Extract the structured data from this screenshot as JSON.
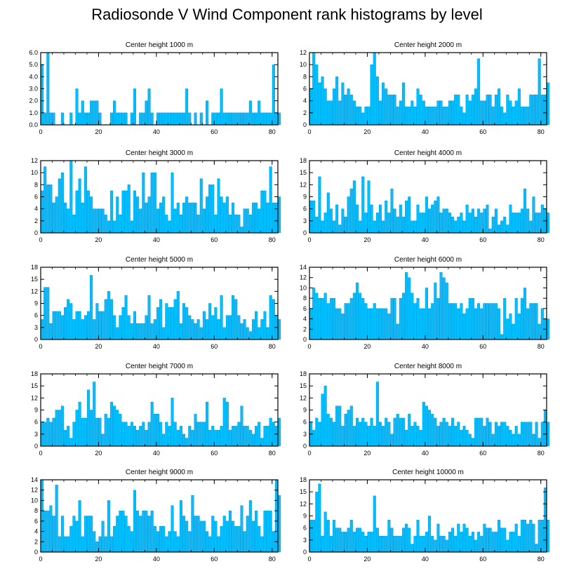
{
  "title": "Radiosonde V Wind Component rank histograms by level",
  "colors": {
    "bar": "#00BFFF",
    "bar_stroke": "#0088cc",
    "axis": "#000000"
  },
  "chart_data": [
    {
      "type": "bar",
      "title": "Center height 1000 m",
      "xlim": [
        0,
        82
      ],
      "ylim": [
        0,
        6
      ],
      "yticks": [
        0,
        1,
        2,
        3,
        4,
        5,
        6
      ],
      "ytick_labels": [
        "0.0",
        "1.0",
        "2.0",
        "3.0",
        "4.0",
        "5.0",
        "6.0"
      ],
      "xticks": [
        0,
        20,
        40,
        60,
        80
      ],
      "values": [
        5,
        1,
        6,
        1,
        1,
        0,
        0,
        1,
        0,
        0,
        1,
        0,
        3,
        1,
        2,
        1,
        1,
        2,
        2,
        2,
        1,
        0,
        0,
        0,
        1,
        2,
        1,
        1,
        1,
        1,
        0,
        1,
        3,
        0,
        1,
        1,
        2,
        3,
        1,
        0,
        1,
        1,
        1,
        1,
        1,
        1,
        1,
        1,
        1,
        1,
        3,
        1,
        0,
        1,
        0,
        1,
        0,
        2,
        0,
        1,
        1,
        1,
        3,
        1,
        1,
        1,
        1,
        1,
        1,
        1,
        1,
        1,
        2,
        1,
        1,
        2,
        1,
        1,
        1,
        1,
        5,
        1,
        1
      ]
    },
    {
      "type": "bar",
      "title": "Center height 2000 m",
      "xlim": [
        0,
        82
      ],
      "ylim": [
        0,
        12
      ],
      "yticks": [
        0,
        2,
        4,
        6,
        8,
        10,
        12
      ],
      "xticks": [
        0,
        20,
        40,
        60,
        80
      ],
      "values": [
        6,
        12,
        10,
        7,
        8,
        6,
        4,
        4,
        6,
        8,
        4,
        7,
        5,
        6,
        5,
        4,
        3,
        3,
        2,
        3,
        3,
        10,
        12,
        8,
        4,
        7,
        6,
        5,
        5,
        5,
        3,
        4,
        7,
        3,
        3,
        4,
        3,
        6,
        5,
        4,
        3,
        3,
        3,
        3,
        4,
        4,
        3,
        3,
        4,
        4,
        5,
        5,
        3,
        2,
        5,
        4,
        5,
        6,
        11,
        4,
        4,
        5,
        5,
        3,
        5,
        6,
        3,
        2,
        5,
        4,
        3,
        4,
        6,
        3,
        3,
        3,
        5,
        5,
        5,
        11,
        5,
        5,
        7
      ]
    },
    {
      "type": "bar",
      "title": "Center height 3000 m",
      "xlim": [
        0,
        82
      ],
      "ylim": [
        0,
        12
      ],
      "yticks": [
        0,
        2,
        4,
        6,
        8,
        10,
        12
      ],
      "xticks": [
        0,
        20,
        40,
        60,
        80
      ],
      "values": [
        7,
        11,
        8,
        8,
        5,
        6,
        9,
        10,
        5,
        4,
        12,
        3,
        7,
        9,
        5,
        11,
        7,
        6,
        4,
        4,
        4,
        4,
        3,
        2,
        7,
        2,
        6,
        3,
        7,
        7,
        8,
        2,
        7,
        6,
        4,
        10,
        5,
        6,
        10,
        10,
        4,
        5,
        6,
        3,
        2,
        10,
        4,
        5,
        3,
        5,
        6,
        5,
        5,
        5,
        3,
        9,
        4,
        6,
        8,
        8,
        3,
        9,
        6,
        5,
        6,
        3,
        5,
        3,
        3,
        1,
        4,
        4,
        3,
        5,
        5,
        4,
        7,
        7,
        5,
        11,
        5,
        5,
        6
      ]
    },
    {
      "type": "bar",
      "title": "Center height 4000 m",
      "xlim": [
        0,
        82
      ],
      "ylim": [
        0,
        18
      ],
      "yticks": [
        0,
        3,
        6,
        9,
        12,
        15,
        18
      ],
      "xticks": [
        0,
        20,
        40,
        60,
        80
      ],
      "values": [
        8,
        8,
        4,
        14,
        3,
        5,
        10,
        6,
        3,
        7,
        2,
        6,
        4,
        9,
        11,
        13,
        7,
        3,
        14,
        5,
        13,
        7,
        3,
        5,
        7,
        3,
        8,
        5,
        11,
        6,
        4,
        7,
        4,
        8,
        9,
        3,
        3,
        7,
        5,
        5,
        9,
        6,
        7,
        8,
        9,
        5,
        6,
        6,
        5,
        4,
        3,
        4,
        5,
        3,
        7,
        5,
        6,
        4,
        6,
        5,
        6,
        7,
        1,
        4,
        6,
        2,
        3,
        4,
        2,
        7,
        5,
        5,
        5,
        6,
        11,
        6,
        3,
        9,
        5,
        5,
        7,
        6,
        5
      ]
    },
    {
      "type": "bar",
      "title": "Center height 5000 m",
      "xlim": [
        0,
        82
      ],
      "ylim": [
        0,
        18
      ],
      "yticks": [
        0,
        3,
        6,
        9,
        12,
        15,
        18
      ],
      "xticks": [
        0,
        20,
        40,
        60,
        80
      ],
      "values": [
        5,
        13,
        13,
        4,
        7,
        7,
        7,
        6,
        8,
        10,
        9,
        5,
        7,
        7,
        5,
        6,
        7,
        16,
        5,
        9,
        7,
        7,
        10,
        12,
        10,
        6,
        3,
        6,
        8,
        11,
        6,
        4,
        7,
        4,
        4,
        4,
        6,
        11,
        4,
        5,
        8,
        10,
        3,
        9,
        8,
        8,
        10,
        12,
        4,
        9,
        8,
        6,
        5,
        4,
        5,
        3,
        7,
        5,
        9,
        6,
        8,
        5,
        11,
        3,
        6,
        6,
        11,
        10,
        6,
        4,
        5,
        3,
        2,
        5,
        7,
        3,
        5,
        7,
        3,
        11,
        10,
        6,
        5
      ]
    },
    {
      "type": "bar",
      "title": "Center height 6000 m",
      "xlim": [
        0,
        82
      ],
      "ylim": [
        0,
        14
      ],
      "yticks": [
        0,
        2,
        4,
        6,
        8,
        10,
        12,
        14
      ],
      "xticks": [
        0,
        20,
        40,
        60,
        80
      ],
      "values": [
        6,
        10,
        9,
        8,
        8,
        9,
        7,
        8,
        8,
        6,
        6,
        5,
        7,
        7,
        8,
        9,
        11,
        9,
        8,
        7,
        6,
        6,
        7,
        6,
        6,
        6,
        6,
        5,
        8,
        8,
        3,
        8,
        9,
        13,
        12,
        9,
        7,
        8,
        6,
        6,
        10,
        6,
        7,
        11,
        8,
        13,
        12,
        11,
        7,
        7,
        7,
        6,
        7,
        5,
        6,
        8,
        8,
        6,
        7,
        6,
        7,
        7,
        7,
        7,
        7,
        6,
        1,
        8,
        4,
        5,
        3,
        8,
        5,
        8,
        10,
        6,
        7,
        7,
        7,
        3,
        6,
        4,
        4
      ]
    },
    {
      "type": "bar",
      "title": "Center height 7000 m",
      "xlim": [
        0,
        82
      ],
      "ylim": [
        0,
        18
      ],
      "yticks": [
        0,
        3,
        6,
        9,
        12,
        15,
        18
      ],
      "xticks": [
        0,
        20,
        40,
        60,
        80
      ],
      "values": [
        6,
        6,
        7,
        6,
        7,
        9,
        9,
        10,
        4,
        5,
        2,
        6,
        9,
        11,
        7,
        7,
        14,
        9,
        16,
        7,
        7,
        3,
        8,
        7,
        11,
        10,
        9,
        8,
        6,
        6,
        5,
        6,
        5,
        4,
        5,
        6,
        4,
        6,
        11,
        8,
        8,
        6,
        3,
        6,
        5,
        12,
        6,
        4,
        5,
        3,
        2,
        5,
        4,
        8,
        6,
        6,
        6,
        11,
        4,
        5,
        4,
        4,
        5,
        12,
        11,
        4,
        5,
        5,
        6,
        10,
        5,
        5,
        4,
        3,
        5,
        6,
        2,
        5,
        5,
        7,
        6,
        5,
        7
      ]
    },
    {
      "type": "bar",
      "title": "Center height 8000 m",
      "xlim": [
        0,
        82
      ],
      "ylim": [
        0,
        18
      ],
      "yticks": [
        0,
        3,
        6,
        9,
        12,
        15,
        18
      ],
      "xticks": [
        0,
        20,
        40,
        60,
        80
      ],
      "values": [
        6,
        4,
        7,
        6,
        13,
        15,
        8,
        7,
        6,
        10,
        10,
        5,
        8,
        9,
        10,
        5,
        7,
        6,
        7,
        6,
        5,
        7,
        5,
        16,
        6,
        5,
        7,
        6,
        3,
        7,
        8,
        7,
        7,
        4,
        8,
        5,
        6,
        5,
        4,
        11,
        10,
        9,
        8,
        7,
        5,
        6,
        7,
        6,
        5,
        7,
        5,
        6,
        4,
        5,
        4,
        3,
        2,
        7,
        7,
        7,
        5,
        7,
        6,
        3,
        6,
        5,
        6,
        6,
        5,
        4,
        3,
        5,
        3,
        6,
        6,
        6,
        6,
        3,
        6,
        2,
        6,
        9,
        6
      ]
    },
    {
      "type": "bar",
      "title": "Center height 9000 m",
      "xlim": [
        0,
        82
      ],
      "ylim": [
        0,
        14
      ],
      "yticks": [
        0,
        2,
        4,
        6,
        8,
        10,
        12,
        14
      ],
      "xticks": [
        0,
        20,
        40,
        60,
        80
      ],
      "values": [
        14,
        8,
        8,
        9,
        7,
        13,
        3,
        7,
        3,
        3,
        5,
        7,
        6,
        10,
        3,
        7,
        7,
        7,
        4,
        2,
        3,
        6,
        3,
        10,
        3,
        5,
        7,
        8,
        8,
        7,
        5,
        4,
        12,
        8,
        7,
        8,
        8,
        7,
        8,
        5,
        4,
        5,
        5,
        3,
        4,
        9,
        4,
        3,
        10,
        7,
        6,
        4,
        11,
        7,
        7,
        6,
        6,
        4,
        3,
        7,
        6,
        3,
        5,
        7,
        6,
        8,
        6,
        5,
        5,
        9,
        4,
        7,
        10,
        6,
        8,
        5,
        3,
        8,
        8,
        8,
        4,
        14,
        11
      ]
    },
    {
      "type": "bar",
      "title": "Center height 10000 m",
      "xlim": [
        0,
        82
      ],
      "ylim": [
        0,
        18
      ],
      "yticks": [
        0,
        3,
        6,
        9,
        12,
        15,
        18
      ],
      "xticks": [
        0,
        20,
        40,
        60,
        80
      ],
      "values": [
        8,
        8,
        15,
        17,
        4,
        10,
        8,
        4,
        8,
        6,
        6,
        5,
        5,
        6,
        8,
        5,
        6,
        6,
        5,
        4,
        5,
        5,
        14,
        6,
        4,
        4,
        4,
        8,
        6,
        4,
        4,
        4,
        6,
        7,
        6,
        2,
        4,
        8,
        4,
        4,
        5,
        9,
        4,
        3,
        7,
        4,
        4,
        3,
        5,
        6,
        4,
        7,
        5,
        7,
        6,
        4,
        5,
        3,
        5,
        4,
        7,
        6,
        6,
        5,
        5,
        8,
        6,
        6,
        3,
        5,
        5,
        7,
        4,
        8,
        8,
        7,
        8,
        7,
        2,
        8,
        8,
        16,
        8
      ]
    }
  ]
}
